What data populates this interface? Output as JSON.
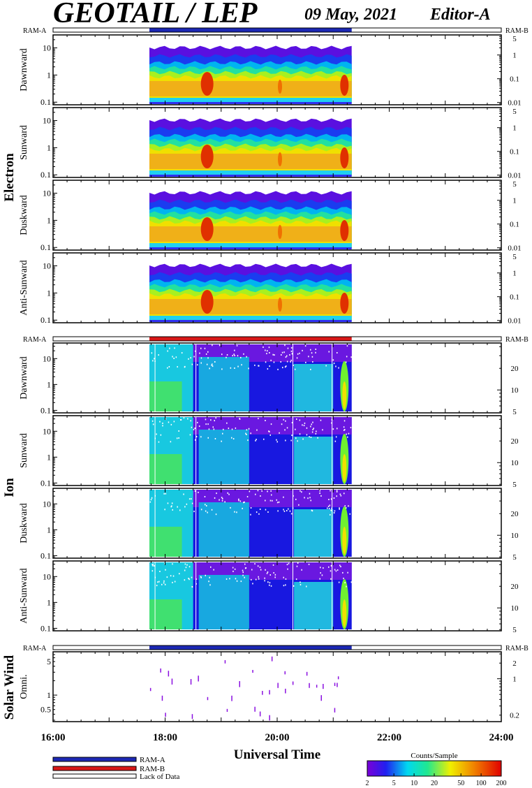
{
  "header": {
    "title": "GEOTAIL / LEP",
    "date": "09 May, 2021",
    "editor": "Editor-A"
  },
  "ram_labels": {
    "left": "RAM-A",
    "right": "RAM-B"
  },
  "groups": [
    {
      "name": "Electron",
      "panels": [
        "Dawnward",
        "Sunward",
        "Duskward",
        "Anti-Sunward"
      ],
      "left_ticks": [
        "10",
        "1",
        "0.1"
      ],
      "left_values": [
        10,
        1,
        0.1
      ],
      "left_range": [
        0.08,
        30
      ],
      "right_ticks": [
        "5",
        "1",
        "0.1",
        "0.01"
      ],
      "right_values": [
        5,
        1,
        0.1,
        0.01
      ],
      "right_range": [
        0.008,
        7
      ],
      "mode_bar": "RAM-A"
    },
    {
      "name": "Ion",
      "panels": [
        "Dawnward",
        "Sunward",
        "Duskward",
        "Anti-Sunward"
      ],
      "left_ticks": [
        "10",
        "1",
        "0.1"
      ],
      "left_values": [
        10,
        1,
        0.1
      ],
      "left_range": [
        0.08,
        40
      ],
      "right_ticks": [
        "20",
        "10",
        "5"
      ],
      "right_values": [
        20,
        10,
        5
      ],
      "right_range": [
        4.8,
        45
      ],
      "mode_bar": "RAM-B"
    }
  ],
  "solar_wind": {
    "name": "Solar Wind",
    "panel": "Omni.",
    "left_ticks": [
      "5",
      "1",
      "0.5"
    ],
    "left_values": [
      5,
      1,
      0.5
    ],
    "left_range": [
      0.28,
      8
    ],
    "right_ticks": [
      "2",
      "1",
      "0.2"
    ],
    "right_values": [
      2,
      1,
      0.2
    ],
    "right_range": [
      0.15,
      3.3
    ],
    "mode_bar": "RAM-A"
  },
  "chart_data": {
    "type": "heatmap",
    "x_axis": {
      "label": "Universal Time",
      "ticks": [
        "16:00",
        "18:00",
        "20:00",
        "22:00",
        "24:00"
      ],
      "tick_hours": [
        16,
        18,
        20,
        22,
        24
      ],
      "range_hours": [
        16,
        24
      ]
    },
    "data_coverage_hours": [
      17.72,
      21.33
    ],
    "colorbar": {
      "label": "Counts/Sample",
      "ticks": [
        "2",
        "5",
        "10",
        "20",
        "50",
        "100",
        "200"
      ],
      "tick_values": [
        2,
        5,
        10,
        20,
        50,
        100,
        200
      ],
      "range": [
        2,
        200
      ],
      "scale": "log"
    }
  },
  "legend": [
    {
      "label": "RAM-A",
      "color": "#1c28b4"
    },
    {
      "label": "RAM-B",
      "color": "#d81818"
    },
    {
      "label": "Lack of Data",
      "color": "#ffffff"
    }
  ]
}
